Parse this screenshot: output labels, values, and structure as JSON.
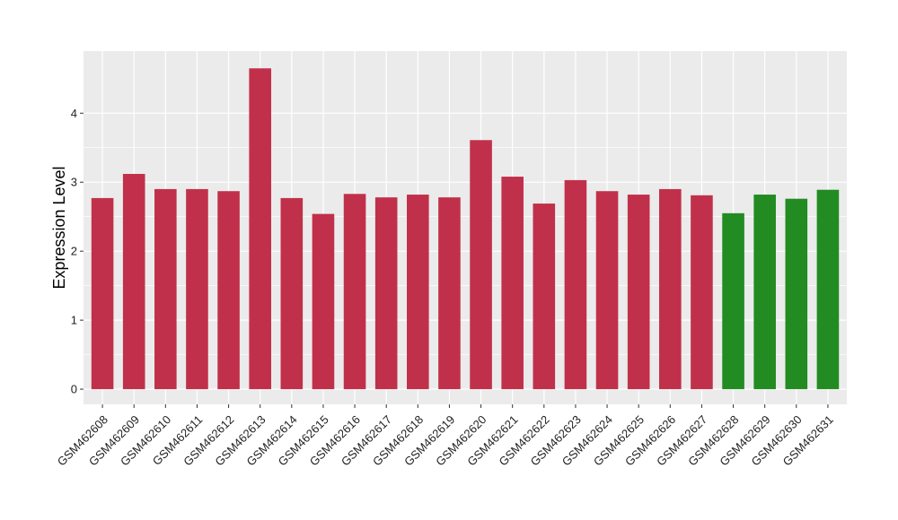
{
  "chart_data": {
    "type": "bar",
    "title": "",
    "xlabel": "",
    "ylabel": "Expression Level",
    "ylim": [
      -0.22,
      4.9
    ],
    "yticks": [
      0,
      1,
      2,
      3,
      4
    ],
    "grid": true,
    "categories": [
      "GSM462608",
      "GSM462609",
      "GSM462610",
      "GSM462611",
      "GSM462612",
      "GSM462613",
      "GSM462614",
      "GSM462615",
      "GSM462616",
      "GSM462617",
      "GSM462618",
      "GSM462619",
      "GSM462620",
      "GSM462621",
      "GSM462622",
      "GSM462623",
      "GSM462624",
      "GSM462625",
      "GSM462626",
      "GSM462627",
      "GSM462628",
      "GSM462629",
      "GSM462630",
      "GSM462631"
    ],
    "values": [
      2.77,
      3.12,
      2.9,
      2.9,
      2.87,
      4.65,
      2.77,
      2.54,
      2.83,
      2.78,
      2.82,
      2.78,
      3.61,
      3.08,
      2.69,
      3.03,
      2.87,
      2.82,
      2.9,
      2.81,
      2.55,
      2.82,
      2.76,
      2.89
    ],
    "bar_colors": [
      "#C1304A",
      "#C1304A",
      "#C1304A",
      "#C1304A",
      "#C1304A",
      "#C1304A",
      "#C1304A",
      "#C1304A",
      "#C1304A",
      "#C1304A",
      "#C1304A",
      "#C1304A",
      "#C1304A",
      "#C1304A",
      "#C1304A",
      "#C1304A",
      "#C1304A",
      "#C1304A",
      "#C1304A",
      "#C1304A",
      "#228B22",
      "#228B22",
      "#228B22",
      "#228B22"
    ],
    "panel_color": "#EBEBEB",
    "grid_color": "#FFFFFF"
  }
}
